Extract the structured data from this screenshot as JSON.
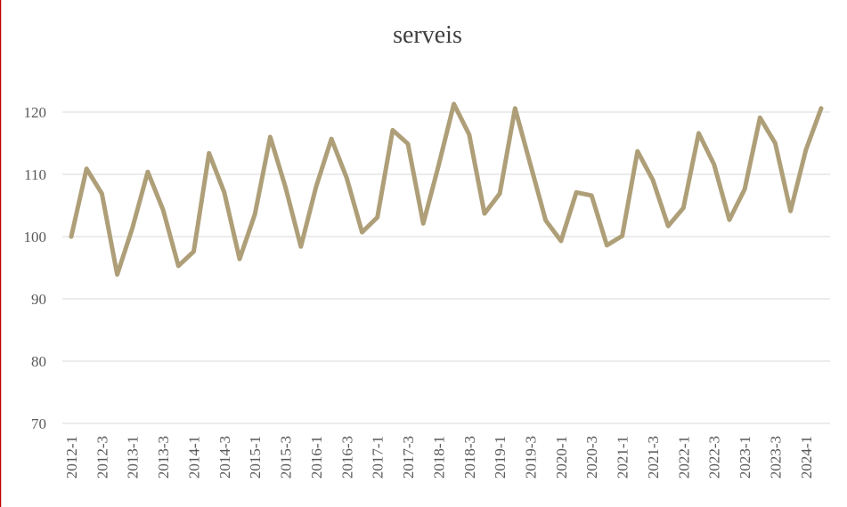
{
  "chart_data": {
    "type": "line",
    "title": "serveis",
    "categories": [
      "2012-1",
      null,
      "2012-3",
      null,
      "2013-1",
      null,
      "2013-3",
      null,
      "2014-1",
      null,
      "2014-3",
      null,
      "2015-1",
      null,
      "2015-3",
      null,
      "2016-1",
      null,
      "2016-3",
      null,
      "2017-1",
      null,
      "2017-3",
      null,
      "2018-1",
      null,
      "2018-3",
      null,
      "2019-1",
      null,
      "2019-3",
      null,
      "2020-1",
      null,
      "2020-3",
      null,
      "2021-1",
      null,
      "2021-3",
      null,
      "2022-1",
      null,
      "2022-3",
      null,
      "2023-1",
      null,
      "2023-3",
      null,
      "2024-1",
      null
    ],
    "values": [
      100,
      110.9,
      106.9,
      93.9,
      101.4,
      110.4,
      104.3,
      95.3,
      97.6,
      113.4,
      107.1,
      96.4,
      103.6,
      116,
      107.9,
      98.4,
      108,
      115.7,
      109.4,
      100.7,
      103.1,
      117.1,
      114.9,
      102.1,
      111.4,
      121.3,
      116.4,
      103.7,
      106.9,
      120.6,
      111.6,
      102.6,
      99.3,
      107.1,
      106.6,
      98.6,
      100.1,
      113.7,
      109.1,
      101.7,
      104.6,
      116.6,
      111.6,
      102.7,
      107.6,
      119.1,
      115,
      104.1,
      113.9,
      120.6
    ],
    "color": "#ae9f78",
    "ylim": [
      70,
      125
    ],
    "yticks": [
      70,
      80,
      90,
      100,
      110,
      120
    ],
    "grid": true
  }
}
